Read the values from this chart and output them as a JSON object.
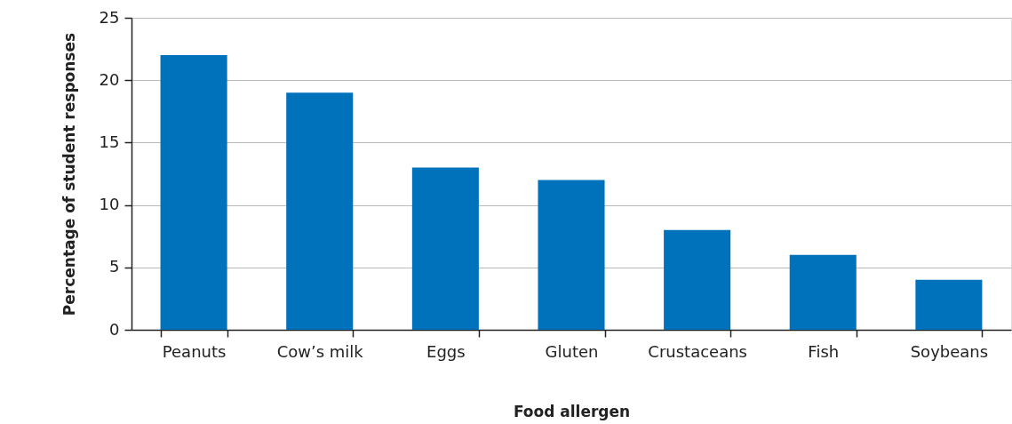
{
  "chart_data": {
    "type": "bar",
    "xlabel": "Food allergen",
    "ylabel": "Percentage of student responses",
    "categories": [
      "Peanuts",
      "Cow’s milk",
      "Eggs",
      "Gluten",
      "Crustaceans",
      "Fish",
      "Soybeans"
    ],
    "values": [
      22,
      19,
      13,
      12,
      8,
      6,
      4
    ],
    "color": "#0072bc",
    "ylim": [
      0,
      25
    ],
    "yticks": [
      0,
      5,
      10,
      15,
      20,
      25
    ],
    "grid": "y"
  }
}
